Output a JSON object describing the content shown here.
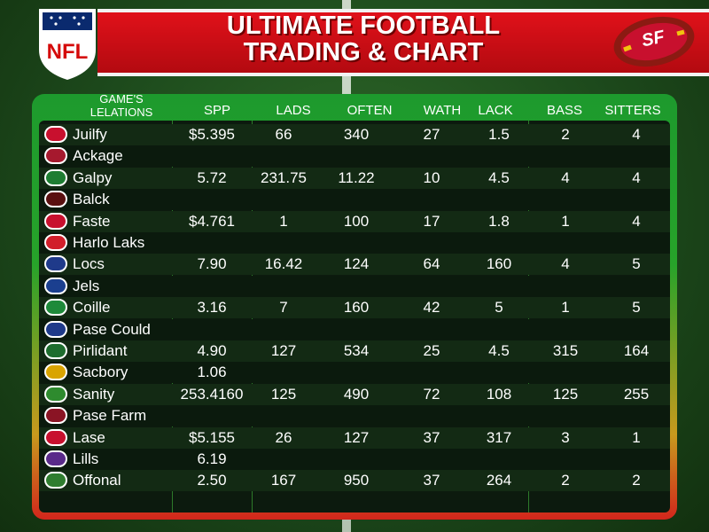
{
  "header": {
    "title_line1": "ULTIMATE FOOTBALL",
    "title_line2": "TRADING & CHART",
    "shield_text": "NFL",
    "ball_text": "SF",
    "colors": {
      "banner": "#d4101a",
      "board_top": "#1d9a2d",
      "board_bottom": "#d2261c"
    }
  },
  "table": {
    "first_header_line1": "GAME'S",
    "first_header_line2": "LELATIONS",
    "columns": [
      "SPP",
      "LADS",
      "OFTEN",
      "WATH",
      "LACK",
      "BASS",
      "SITTERS"
    ],
    "rows": [
      {
        "team": "Juilfy",
        "logo_color": "#c8102e",
        "values": [
          "$5.395",
          "66",
          "340",
          "27",
          "1.5",
          "2",
          "4"
        ]
      },
      {
        "team": "Ackage",
        "logo_color": "#a6192e",
        "values": [
          "",
          "",
          "",
          "",
          "",
          "",
          ""
        ]
      },
      {
        "team": "Galpy",
        "logo_color": "#1e7d32",
        "values": [
          "5.72",
          "231.75",
          "11.22",
          "10",
          "4.5",
          "4",
          "4"
        ]
      },
      {
        "team": "Balck",
        "logo_color": "#5a1010",
        "values": [
          "",
          "",
          "",
          "",
          "",
          "",
          ""
        ]
      },
      {
        "team": "Faste",
        "logo_color": "#c8102e",
        "values": [
          "$4.761",
          "1",
          "100",
          "17",
          "1.8",
          "1",
          "4"
        ]
      },
      {
        "team": "Harlo Laks",
        "logo_color": "#d11e2a",
        "values": [
          "",
          "",
          "",
          "",
          "",
          "",
          ""
        ]
      },
      {
        "team": "Locs",
        "logo_color": "#1f3a8a",
        "values": [
          "7.90",
          "16.42",
          "124",
          "64",
          "160",
          "4",
          "5"
        ]
      },
      {
        "team": "Jels",
        "logo_color": "#1b3f8f",
        "values": [
          "",
          "",
          "",
          "",
          "",
          "",
          ""
        ]
      },
      {
        "team": "Coille",
        "logo_color": "#1e8a3a",
        "values": [
          "3.16",
          "7",
          "160",
          "42",
          "5",
          "1",
          "5"
        ]
      },
      {
        "team": "Pase Could",
        "logo_color": "#1f3a8a",
        "values": [
          "",
          "",
          "",
          "",
          "",
          "",
          ""
        ]
      },
      {
        "team": "Pirlidant",
        "logo_color": "#1e6d2e",
        "values": [
          "4.90",
          "127",
          "534",
          "25",
          "4.5",
          "315",
          "164"
        ]
      },
      {
        "team": "Sacbory",
        "logo_color": "#d9a400",
        "values": [
          "1.06",
          "",
          "",
          "",
          "",
          "",
          ""
        ]
      },
      {
        "team": "Sanity",
        "logo_color": "#2e8b2e",
        "values": [
          "253.4160",
          "125",
          "490",
          "72",
          "108",
          "125",
          "255"
        ]
      },
      {
        "team": "Pase Farm",
        "logo_color": "#8a1424",
        "values": [
          "",
          "",
          "",
          "",
          "",
          "",
          ""
        ]
      },
      {
        "team": "Lase",
        "logo_color": "#c8102e",
        "values": [
          "$5.155",
          "26",
          "127",
          "37",
          "317",
          "3",
          "1"
        ]
      },
      {
        "team": "Lills",
        "logo_color": "#5a2a8a",
        "values": [
          "6.19",
          "",
          "",
          "",
          "",
          "",
          ""
        ]
      },
      {
        "team": "Offonal",
        "logo_color": "#2f7d2f",
        "values": [
          "2.50",
          "167",
          "950",
          "37",
          "264",
          "2",
          "2"
        ]
      }
    ]
  }
}
